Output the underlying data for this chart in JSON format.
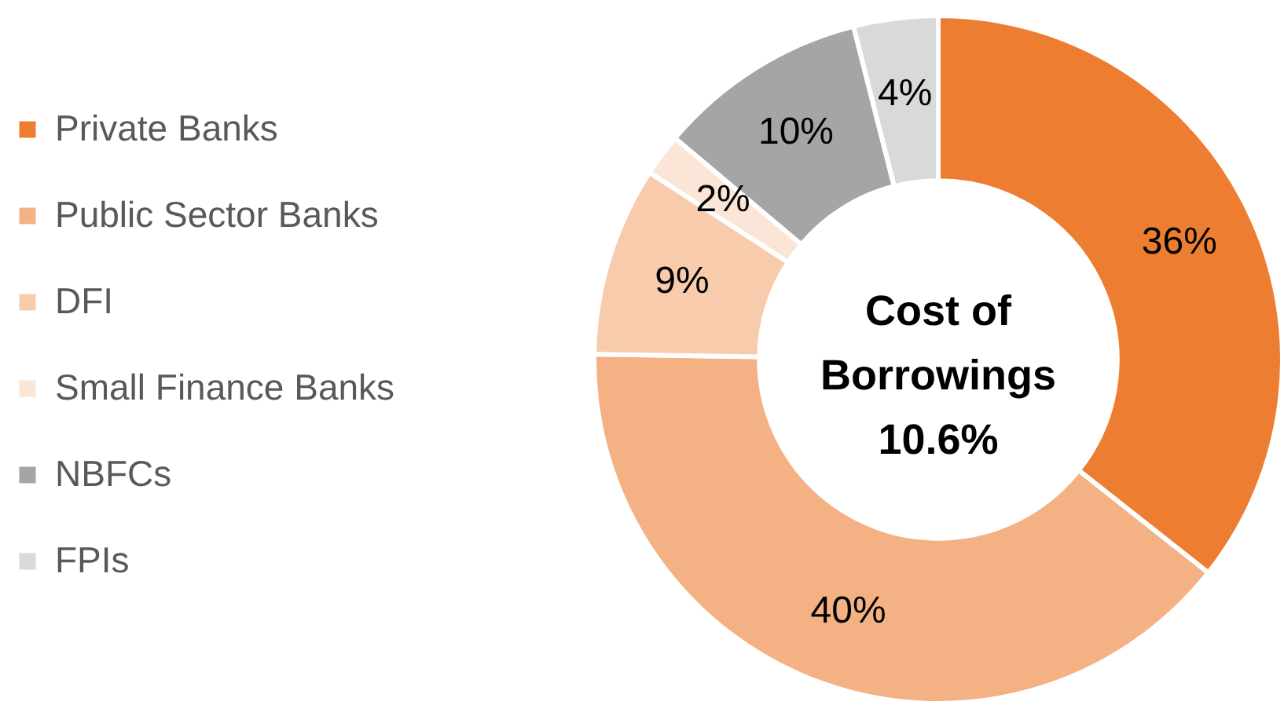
{
  "chart_data": {
    "type": "donut",
    "categories": [
      "Private Banks",
      "Public Sector Banks",
      "DFI",
      "Small Finance Banks",
      "NBFCs",
      "FPIs"
    ],
    "values": [
      36,
      40,
      9,
      2,
      10,
      4
    ],
    "colors": [
      "#ed7d31",
      "#f4b183",
      "#f8cbad",
      "#fbe5d6",
      "#a5a5a5",
      "#d9d9d9"
    ],
    "value_labels": [
      "36%",
      "40%",
      "9%",
      "2%",
      "10%",
      "4%"
    ],
    "annotations": [
      "Cost of\nBorrowings\n10.6%"
    ],
    "legend": "left"
  }
}
